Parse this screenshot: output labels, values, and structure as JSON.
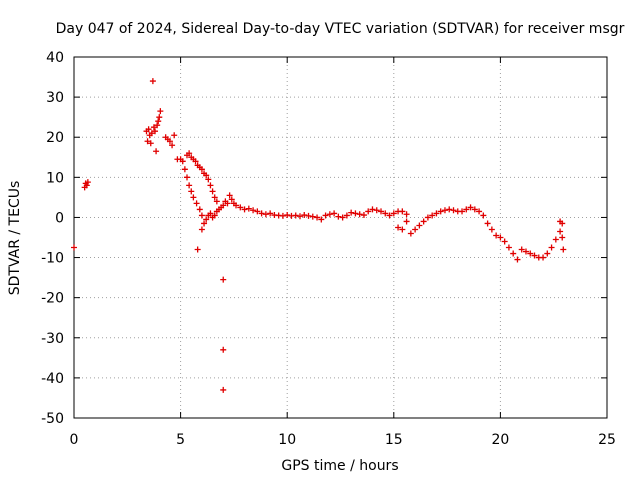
{
  "chart_data": {
    "type": "scatter",
    "title": "Day 047 of 2024, Sidereal Day-to-day VTEC variation (SDTVAR) for receiver msgr",
    "xlabel": "GPS time / hours",
    "ylabel": "SDTVAR / TECUs",
    "xlim": [
      0,
      25
    ],
    "ylim": [
      -50,
      40
    ],
    "xticks": [
      0,
      5,
      10,
      15,
      20,
      25
    ],
    "yticks": [
      -50,
      -40,
      -30,
      -20,
      -10,
      0,
      10,
      20,
      30,
      40
    ],
    "xtick_labels": [
      "0",
      "5",
      "10",
      "15",
      "20",
      "25"
    ],
    "ytick_labels": [
      "-50",
      "-40",
      "-30",
      "-20",
      "-10",
      "0",
      "10",
      "20",
      "30",
      "40"
    ],
    "grid": true,
    "marker": "+",
    "series": [
      {
        "name": "SDTVAR",
        "color": "#e00000",
        "points": [
          [
            0.0,
            -7.5
          ],
          [
            0.5,
            7.5
          ],
          [
            0.55,
            8.5
          ],
          [
            0.6,
            8.0
          ],
          [
            0.65,
            8.8
          ],
          [
            3.4,
            21.5
          ],
          [
            3.45,
            19.0
          ],
          [
            3.5,
            22.0
          ],
          [
            3.55,
            20.5
          ],
          [
            3.6,
            18.5
          ],
          [
            3.65,
            21.0
          ],
          [
            3.7,
            34.0
          ],
          [
            3.75,
            22.5
          ],
          [
            3.8,
            21.5
          ],
          [
            3.85,
            16.5
          ],
          [
            3.9,
            23.0
          ],
          [
            3.95,
            24.0
          ],
          [
            4.0,
            25.0
          ],
          [
            4.05,
            26.5
          ],
          [
            4.3,
            20.0
          ],
          [
            4.4,
            19.5
          ],
          [
            4.5,
            19.0
          ],
          [
            4.6,
            18.0
          ],
          [
            4.7,
            20.5
          ],
          [
            4.85,
            14.5
          ],
          [
            5.0,
            14.5
          ],
          [
            5.1,
            14.0
          ],
          [
            5.2,
            12.0
          ],
          [
            5.3,
            10.0
          ],
          [
            5.4,
            8.0
          ],
          [
            5.5,
            6.5
          ],
          [
            5.6,
            5.0
          ],
          [
            5.3,
            15.5
          ],
          [
            5.4,
            16.0
          ],
          [
            5.5,
            15.0
          ],
          [
            5.6,
            14.5
          ],
          [
            5.7,
            14.0
          ],
          [
            5.8,
            13.0
          ],
          [
            5.9,
            12.5
          ],
          [
            6.0,
            12.0
          ],
          [
            6.1,
            11.0
          ],
          [
            6.2,
            10.5
          ],
          [
            6.3,
            9.5
          ],
          [
            6.4,
            8.0
          ],
          [
            6.5,
            6.5
          ],
          [
            6.6,
            5.0
          ],
          [
            6.7,
            4.0
          ],
          [
            5.75,
            3.5
          ],
          [
            5.8,
            -8.0
          ],
          [
            5.9,
            2.0
          ],
          [
            6.0,
            0.5
          ],
          [
            6.0,
            -3.0
          ],
          [
            6.1,
            -1.5
          ],
          [
            6.2,
            -0.5
          ],
          [
            6.3,
            0.5
          ],
          [
            6.4,
            1.0
          ],
          [
            6.5,
            0.0
          ],
          [
            6.6,
            0.5
          ],
          [
            6.7,
            1.5
          ],
          [
            6.8,
            2.0
          ],
          [
            6.9,
            2.5
          ],
          [
            7.0,
            -15.5
          ],
          [
            7.0,
            -33.0
          ],
          [
            7.0,
            -43.0
          ],
          [
            7.0,
            3.0
          ],
          [
            7.1,
            4.0
          ],
          [
            7.2,
            3.5
          ],
          [
            7.3,
            5.5
          ],
          [
            7.4,
            4.5
          ],
          [
            7.5,
            3.5
          ],
          [
            7.6,
            3.0
          ],
          [
            7.8,
            2.5
          ],
          [
            8.0,
            2.0
          ],
          [
            8.2,
            2.2
          ],
          [
            8.4,
            1.8
          ],
          [
            8.6,
            1.5
          ],
          [
            8.8,
            1.0
          ],
          [
            9.0,
            0.8
          ],
          [
            9.2,
            1.0
          ],
          [
            9.4,
            0.6
          ],
          [
            9.6,
            0.5
          ],
          [
            9.8,
            0.4
          ],
          [
            10.0,
            0.6
          ],
          [
            10.2,
            0.4
          ],
          [
            10.4,
            0.5
          ],
          [
            10.6,
            0.3
          ],
          [
            10.8,
            0.6
          ],
          [
            11.0,
            0.4
          ],
          [
            11.2,
            0.2
          ],
          [
            11.4,
            0.0
          ],
          [
            11.6,
            -0.5
          ],
          [
            11.8,
            0.5
          ],
          [
            12.0,
            0.8
          ],
          [
            12.2,
            1.0
          ],
          [
            12.4,
            0.2
          ],
          [
            12.6,
            0.0
          ],
          [
            12.8,
            0.5
          ],
          [
            13.0,
            1.2
          ],
          [
            13.2,
            1.0
          ],
          [
            13.4,
            0.8
          ],
          [
            13.6,
            0.6
          ],
          [
            13.8,
            1.5
          ],
          [
            14.0,
            2.0
          ],
          [
            14.2,
            1.8
          ],
          [
            14.4,
            1.5
          ],
          [
            14.6,
            1.0
          ],
          [
            14.8,
            0.5
          ],
          [
            15.0,
            1.0
          ],
          [
            15.2,
            1.5
          ],
          [
            15.4,
            1.5
          ],
          [
            15.6,
            0.8
          ],
          [
            15.2,
            -2.5
          ],
          [
            15.4,
            -3.0
          ],
          [
            15.6,
            -1.0
          ],
          [
            15.8,
            -4.0
          ],
          [
            16.0,
            -3.0
          ],
          [
            16.2,
            -2.0
          ],
          [
            16.4,
            -1.0
          ],
          [
            16.6,
            0.0
          ],
          [
            16.8,
            0.5
          ],
          [
            17.0,
            1.0
          ],
          [
            17.2,
            1.5
          ],
          [
            17.4,
            1.8
          ],
          [
            17.6,
            2.0
          ],
          [
            17.8,
            1.8
          ],
          [
            18.0,
            1.5
          ],
          [
            18.2,
            1.5
          ],
          [
            18.4,
            2.0
          ],
          [
            18.6,
            2.5
          ],
          [
            18.8,
            2.0
          ],
          [
            19.0,
            1.5
          ],
          [
            19.2,
            0.5
          ],
          [
            19.4,
            -1.5
          ],
          [
            19.6,
            -3.0
          ],
          [
            19.8,
            -4.5
          ],
          [
            20.0,
            -5.0
          ],
          [
            20.2,
            -6.0
          ],
          [
            20.4,
            -7.5
          ],
          [
            20.6,
            -9.0
          ],
          [
            20.8,
            -10.5
          ],
          [
            21.0,
            -8.0
          ],
          [
            21.2,
            -8.5
          ],
          [
            21.4,
            -9.0
          ],
          [
            21.6,
            -9.5
          ],
          [
            21.8,
            -10.0
          ],
          [
            22.0,
            -10.0
          ],
          [
            22.2,
            -9.0
          ],
          [
            22.4,
            -7.5
          ],
          [
            22.6,
            -5.5
          ],
          [
            22.8,
            -3.5
          ],
          [
            22.9,
            -1.5
          ],
          [
            22.95,
            -8.0
          ],
          [
            22.8,
            -1.0
          ],
          [
            22.9,
            -5.0
          ]
        ]
      }
    ]
  }
}
